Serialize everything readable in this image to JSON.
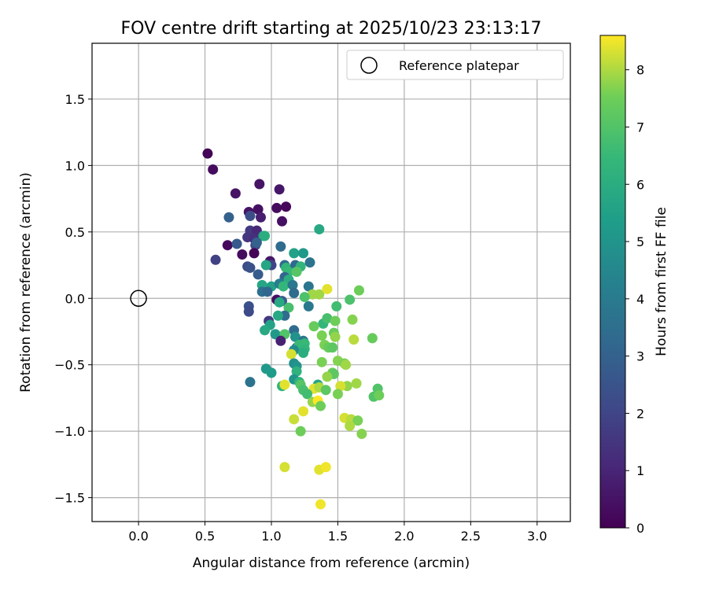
{
  "chart_data": {
    "type": "scatter",
    "title": "FOV centre drift starting at 2025/10/23 23:13:17",
    "xlabel": "Angular distance from reference (arcmin)",
    "ylabel": "Rotation from reference (arcmin)",
    "xlim": [
      -0.35,
      3.25
    ],
    "ylim": [
      -1.68,
      1.92
    ],
    "xticks": [
      0.0,
      0.5,
      1.0,
      1.5,
      2.0,
      2.5,
      3.0
    ],
    "xtick_labels": [
      "0.0",
      "0.5",
      "1.0",
      "1.5",
      "2.0",
      "2.5",
      "3.0"
    ],
    "yticks": [
      -1.5,
      -1.0,
      -0.5,
      0.0,
      0.5,
      1.0,
      1.5
    ],
    "ytick_labels": [
      "−1.5",
      "−1.0",
      "−0.5",
      "0.0",
      "0.5",
      "1.0",
      "1.5"
    ],
    "grid": true,
    "legend": {
      "placement": "top-right",
      "entries": [
        "Reference platepar"
      ]
    },
    "reference_point": {
      "x": 0.0,
      "y": 0.0,
      "label": "Reference platepar"
    },
    "colorbar": {
      "label": "Hours from first FF file",
      "range": [
        0,
        8.6
      ],
      "ticks": [
        0,
        1,
        2,
        3,
        4,
        5,
        6,
        7,
        8
      ],
      "tick_labels": [
        "0",
        "1",
        "2",
        "3",
        "4",
        "5",
        "6",
        "7",
        "8"
      ],
      "colormap": "viridis"
    },
    "series": [
      {
        "name": "FOV centre drift",
        "points": [
          {
            "x": 0.52,
            "y": 1.09,
            "h": 0.1
          },
          {
            "x": 0.56,
            "y": 0.97,
            "h": 0.3
          },
          {
            "x": 0.73,
            "y": 0.79,
            "h": 0.5
          },
          {
            "x": 0.91,
            "y": 0.86,
            "h": 0.5
          },
          {
            "x": 1.06,
            "y": 0.82,
            "h": 0.6
          },
          {
            "x": 1.04,
            "y": 0.68,
            "h": 0.3
          },
          {
            "x": 1.11,
            "y": 0.69,
            "h": 0.2
          },
          {
            "x": 0.9,
            "y": 0.67,
            "h": 0.4
          },
          {
            "x": 0.92,
            "y": 0.61,
            "h": 0.8
          },
          {
            "x": 0.83,
            "y": 0.65,
            "h": 0.5
          },
          {
            "x": 0.68,
            "y": 0.61,
            "h": 3.0
          },
          {
            "x": 0.84,
            "y": 0.62,
            "h": 2.3
          },
          {
            "x": 1.08,
            "y": 0.58,
            "h": 0.4
          },
          {
            "x": 0.84,
            "y": 0.51,
            "h": 1.6
          },
          {
            "x": 0.89,
            "y": 0.51,
            "h": 1.1
          },
          {
            "x": 0.82,
            "y": 0.46,
            "h": 1.5
          },
          {
            "x": 0.87,
            "y": 0.45,
            "h": 1.3
          },
          {
            "x": 0.94,
            "y": 0.47,
            "h": 5.7
          },
          {
            "x": 0.95,
            "y": 0.47,
            "h": 6.0
          },
          {
            "x": 1.36,
            "y": 0.52,
            "h": 5.8
          },
          {
            "x": 0.67,
            "y": 0.4,
            "h": 0.2
          },
          {
            "x": 0.74,
            "y": 0.41,
            "h": 2.7
          },
          {
            "x": 0.88,
            "y": 0.4,
            "h": 2.2
          },
          {
            "x": 0.89,
            "y": 0.42,
            "h": 3.0
          },
          {
            "x": 1.07,
            "y": 0.39,
            "h": 3.4
          },
          {
            "x": 0.78,
            "y": 0.33,
            "h": 0.3
          },
          {
            "x": 0.87,
            "y": 0.34,
            "h": 0.1
          },
          {
            "x": 0.58,
            "y": 0.29,
            "h": 1.9
          },
          {
            "x": 1.17,
            "y": 0.34,
            "h": 5.5
          },
          {
            "x": 1.24,
            "y": 0.34,
            "h": 5.2
          },
          {
            "x": 0.99,
            "y": 0.28,
            "h": 0.6
          },
          {
            "x": 1.0,
            "y": 0.25,
            "h": 2.0
          },
          {
            "x": 0.82,
            "y": 0.24,
            "h": 2.2
          },
          {
            "x": 0.84,
            "y": 0.23,
            "h": 2.4
          },
          {
            "x": 0.96,
            "y": 0.25,
            "h": 5.7
          },
          {
            "x": 1.1,
            "y": 0.25,
            "h": 3.3
          },
          {
            "x": 1.11,
            "y": 0.23,
            "h": 6.3
          },
          {
            "x": 1.18,
            "y": 0.25,
            "h": 3.3
          },
          {
            "x": 1.22,
            "y": 0.24,
            "h": 6.3
          },
          {
            "x": 1.29,
            "y": 0.27,
            "h": 3.7
          },
          {
            "x": 0.9,
            "y": 0.18,
            "h": 2.8
          },
          {
            "x": 1.13,
            "y": 0.2,
            "h": 6.5
          },
          {
            "x": 1.1,
            "y": 0.16,
            "h": 3.2
          },
          {
            "x": 1.19,
            "y": 0.2,
            "h": 7.1
          },
          {
            "x": 1.13,
            "y": 0.14,
            "h": 6.0
          },
          {
            "x": 1.0,
            "y": 0.09,
            "h": 5.5
          },
          {
            "x": 1.06,
            "y": 0.11,
            "h": 4.1
          },
          {
            "x": 1.09,
            "y": 0.09,
            "h": 6.4
          },
          {
            "x": 1.16,
            "y": 0.1,
            "h": 3.9
          },
          {
            "x": 1.17,
            "y": 0.04,
            "h": 3.4
          },
          {
            "x": 1.28,
            "y": 0.09,
            "h": 3.8
          },
          {
            "x": 0.93,
            "y": 0.1,
            "h": 5.7
          },
          {
            "x": 0.93,
            "y": 0.05,
            "h": 3.6
          },
          {
            "x": 0.97,
            "y": 0.05,
            "h": 3.2
          },
          {
            "x": 1.31,
            "y": 0.03,
            "h": 7.9
          },
          {
            "x": 1.36,
            "y": 0.03,
            "h": 7.9
          },
          {
            "x": 1.42,
            "y": 0.07,
            "h": 8.4
          },
          {
            "x": 1.25,
            "y": 0.01,
            "h": 6.9
          },
          {
            "x": 1.04,
            "y": -0.01,
            "h": 0.4
          },
          {
            "x": 1.08,
            "y": -0.02,
            "h": 2.8
          },
          {
            "x": 1.06,
            "y": -0.03,
            "h": 5.8
          },
          {
            "x": 1.13,
            "y": -0.07,
            "h": 6.8
          },
          {
            "x": 1.28,
            "y": -0.06,
            "h": 3.9
          },
          {
            "x": 1.49,
            "y": -0.06,
            "h": 6.7
          },
          {
            "x": 1.59,
            "y": -0.01,
            "h": 6.9
          },
          {
            "x": 1.66,
            "y": 0.06,
            "h": 7.5
          },
          {
            "x": 0.83,
            "y": -0.06,
            "h": 2.4
          },
          {
            "x": 0.83,
            "y": -0.1,
            "h": 2.2
          },
          {
            "x": 1.1,
            "y": -0.13,
            "h": 3.4
          },
          {
            "x": 1.05,
            "y": -0.13,
            "h": 5.8
          },
          {
            "x": 0.98,
            "y": -0.17,
            "h": 1.6
          },
          {
            "x": 0.99,
            "y": -0.2,
            "h": 5.6
          },
          {
            "x": 1.39,
            "y": -0.19,
            "h": 6.4
          },
          {
            "x": 1.42,
            "y": -0.15,
            "h": 6.8
          },
          {
            "x": 1.32,
            "y": -0.21,
            "h": 7.4
          },
          {
            "x": 1.48,
            "y": -0.17,
            "h": 7.5
          },
          {
            "x": 1.61,
            "y": -0.16,
            "h": 7.7
          },
          {
            "x": 0.95,
            "y": -0.24,
            "h": 5.8
          },
          {
            "x": 1.17,
            "y": -0.24,
            "h": 3.4
          },
          {
            "x": 1.03,
            "y": -0.27,
            "h": 5.2
          },
          {
            "x": 1.1,
            "y": -0.27,
            "h": 7.0
          },
          {
            "x": 1.18,
            "y": -0.29,
            "h": 4.9
          },
          {
            "x": 1.07,
            "y": -0.32,
            "h": 0.9
          },
          {
            "x": 1.24,
            "y": -0.32,
            "h": 3.8
          },
          {
            "x": 1.25,
            "y": -0.34,
            "h": 6.5
          },
          {
            "x": 1.38,
            "y": -0.28,
            "h": 7.6
          },
          {
            "x": 1.47,
            "y": -0.26,
            "h": 7.4
          },
          {
            "x": 1.48,
            "y": -0.29,
            "h": 7.8
          },
          {
            "x": 1.62,
            "y": -0.31,
            "h": 8.1
          },
          {
            "x": 1.76,
            "y": -0.3,
            "h": 7.4
          },
          {
            "x": 1.19,
            "y": -0.37,
            "h": 4.2
          },
          {
            "x": 1.21,
            "y": -0.35,
            "h": 6.5
          },
          {
            "x": 1.25,
            "y": -0.38,
            "h": 6.3
          },
          {
            "x": 1.17,
            "y": -0.39,
            "h": 4.7
          },
          {
            "x": 1.24,
            "y": -0.41,
            "h": 6.0
          },
          {
            "x": 1.4,
            "y": -0.35,
            "h": 7.6
          },
          {
            "x": 1.43,
            "y": -0.37,
            "h": 7.4
          },
          {
            "x": 1.46,
            "y": -0.37,
            "h": 7.2
          },
          {
            "x": 1.15,
            "y": -0.42,
            "h": 8.3
          },
          {
            "x": 1.17,
            "y": -0.49,
            "h": 4.8
          },
          {
            "x": 1.19,
            "y": -0.51,
            "h": 5.0
          },
          {
            "x": 1.38,
            "y": -0.48,
            "h": 7.6
          },
          {
            "x": 1.5,
            "y": -0.47,
            "h": 7.7
          },
          {
            "x": 1.55,
            "y": -0.49,
            "h": 7.6
          },
          {
            "x": 1.56,
            "y": -0.5,
            "h": 7.9
          },
          {
            "x": 0.96,
            "y": -0.53,
            "h": 5.2
          },
          {
            "x": 1.0,
            "y": -0.56,
            "h": 5.3
          },
          {
            "x": 0.84,
            "y": -0.63,
            "h": 3.7
          },
          {
            "x": 1.19,
            "y": -0.55,
            "h": 6.2
          },
          {
            "x": 1.46,
            "y": -0.56,
            "h": 7.5
          },
          {
            "x": 1.47,
            "y": -0.57,
            "h": 7.2
          },
          {
            "x": 1.42,
            "y": -0.59,
            "h": 7.8
          },
          {
            "x": 1.17,
            "y": -0.61,
            "h": 5.0
          },
          {
            "x": 1.21,
            "y": -0.63,
            "h": 6.2
          },
          {
            "x": 1.35,
            "y": -0.65,
            "h": 5.7
          },
          {
            "x": 1.08,
            "y": -0.66,
            "h": 6.3
          },
          {
            "x": 1.1,
            "y": -0.65,
            "h": 8.4
          },
          {
            "x": 1.22,
            "y": -0.65,
            "h": 7.1
          },
          {
            "x": 1.57,
            "y": -0.66,
            "h": 7.8
          },
          {
            "x": 1.64,
            "y": -0.64,
            "h": 7.9
          },
          {
            "x": 1.32,
            "y": -0.68,
            "h": 8.4
          },
          {
            "x": 1.36,
            "y": -0.67,
            "h": 8.0
          },
          {
            "x": 1.41,
            "y": -0.69,
            "h": 7.2
          },
          {
            "x": 1.52,
            "y": -0.66,
            "h": 8.3
          },
          {
            "x": 1.5,
            "y": -0.72,
            "h": 7.6
          },
          {
            "x": 1.24,
            "y": -0.69,
            "h": 6.8
          },
          {
            "x": 1.27,
            "y": -0.72,
            "h": 6.7
          },
          {
            "x": 1.8,
            "y": -0.68,
            "h": 7.0
          },
          {
            "x": 1.77,
            "y": -0.74,
            "h": 7.0
          },
          {
            "x": 1.81,
            "y": -0.73,
            "h": 7.5
          },
          {
            "x": 1.31,
            "y": -0.78,
            "h": 7.8
          },
          {
            "x": 1.35,
            "y": -0.77,
            "h": 8.6
          },
          {
            "x": 1.37,
            "y": -0.81,
            "h": 7.5
          },
          {
            "x": 1.24,
            "y": -0.85,
            "h": 8.4
          },
          {
            "x": 1.17,
            "y": -0.91,
            "h": 8.2
          },
          {
            "x": 1.55,
            "y": -0.9,
            "h": 8.3
          },
          {
            "x": 1.6,
            "y": -0.91,
            "h": 8.1
          },
          {
            "x": 1.65,
            "y": -0.92,
            "h": 7.6
          },
          {
            "x": 1.59,
            "y": -0.96,
            "h": 8.0
          },
          {
            "x": 1.22,
            "y": -1.0,
            "h": 7.5
          },
          {
            "x": 1.68,
            "y": -1.02,
            "h": 7.7
          },
          {
            "x": 1.1,
            "y": -1.27,
            "h": 8.3
          },
          {
            "x": 1.36,
            "y": -1.29,
            "h": 8.4
          },
          {
            "x": 1.41,
            "y": -1.27,
            "h": 8.5
          },
          {
            "x": 1.37,
            "y": -1.55,
            "h": 8.5
          }
        ]
      }
    ]
  }
}
